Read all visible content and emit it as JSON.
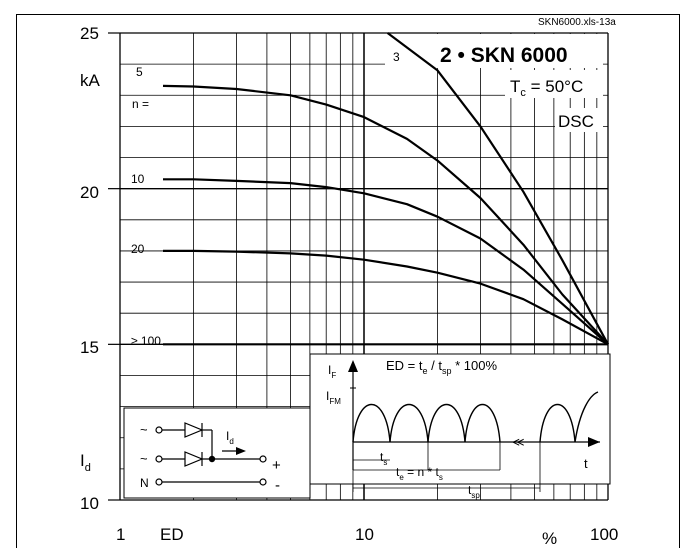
{
  "chart_data": {
    "type": "line",
    "file_label": "SKN6000.xls-13a",
    "title": "2 • SKN 6000",
    "condition": "Tc = 50°C",
    "condition_main": "T",
    "condition_sub": "c",
    "condition_rest": " = 50°C",
    "config": "DSC",
    "y_unit": "kA",
    "y_symbol_main": "I",
    "y_symbol_sub": "d",
    "x_label": "ED",
    "x_unit": "%",
    "y_ticks": [
      "25",
      "20",
      "15",
      "10"
    ],
    "x_ticks": [
      "1",
      "10",
      "100"
    ],
    "xlim": [
      1,
      100
    ],
    "ylim": [
      10,
      25
    ],
    "x_scale": "log",
    "series_prefix": "n =",
    "series": [
      {
        "name": "3",
        "x": [
          12.5,
          20,
          30,
          45,
          65,
          100
        ],
        "y": [
          25,
          23.8,
          22.0,
          19.9,
          17.7,
          15
        ]
      },
      {
        "name": "5",
        "x": [
          1.5,
          2,
          3,
          5,
          7,
          10,
          15,
          20,
          30,
          45,
          65,
          100
        ],
        "y": [
          23.3,
          23.28,
          23.2,
          23.0,
          22.7,
          22.3,
          21.6,
          20.9,
          19.7,
          18.2,
          16.6,
          15
        ]
      },
      {
        "name": "10",
        "x": [
          1.5,
          2,
          3,
          5,
          7,
          10,
          15,
          20,
          30,
          45,
          65,
          100
        ],
        "y": [
          20.3,
          20.3,
          20.25,
          20.18,
          20.05,
          19.85,
          19.5,
          19.1,
          18.4,
          17.4,
          16.3,
          15
        ]
      },
      {
        "name": "20",
        "x": [
          1.5,
          2,
          3,
          5,
          7,
          10,
          15,
          20,
          30,
          45,
          65,
          100
        ],
        "y": [
          18.0,
          18.0,
          17.98,
          17.92,
          17.85,
          17.72,
          17.5,
          17.3,
          16.95,
          16.45,
          15.8,
          15
        ]
      },
      {
        "name": "≥ 100",
        "x": [
          1.5,
          100
        ],
        "y": [
          15.0,
          15.0
        ]
      }
    ],
    "grid": true,
    "inset_waveform": {
      "y_label_main": "I",
      "y_label_sub": "F",
      "peak_label_main": "I",
      "peak_label_sub": "FM",
      "formula_text": "ED = t",
      "formula_sub1": "e",
      "formula_mid": " / t",
      "formula_sub2": "sp",
      "formula_tail": " * 100%",
      "ts_main": "t",
      "ts_sub": "s",
      "te_main": "t",
      "te_sub": "e",
      "te_mid": " = n * t",
      "te_sub2": "s",
      "tsp_main": "t",
      "tsp_sub": "sp",
      "t_axis": "t",
      "break_mark": "≪"
    },
    "inset_circuit": {
      "ac1": "~",
      "ac2": "~",
      "neutral": "N",
      "id_main": "I",
      "id_sub": "d",
      "plus": "+",
      "minus": "-"
    }
  }
}
